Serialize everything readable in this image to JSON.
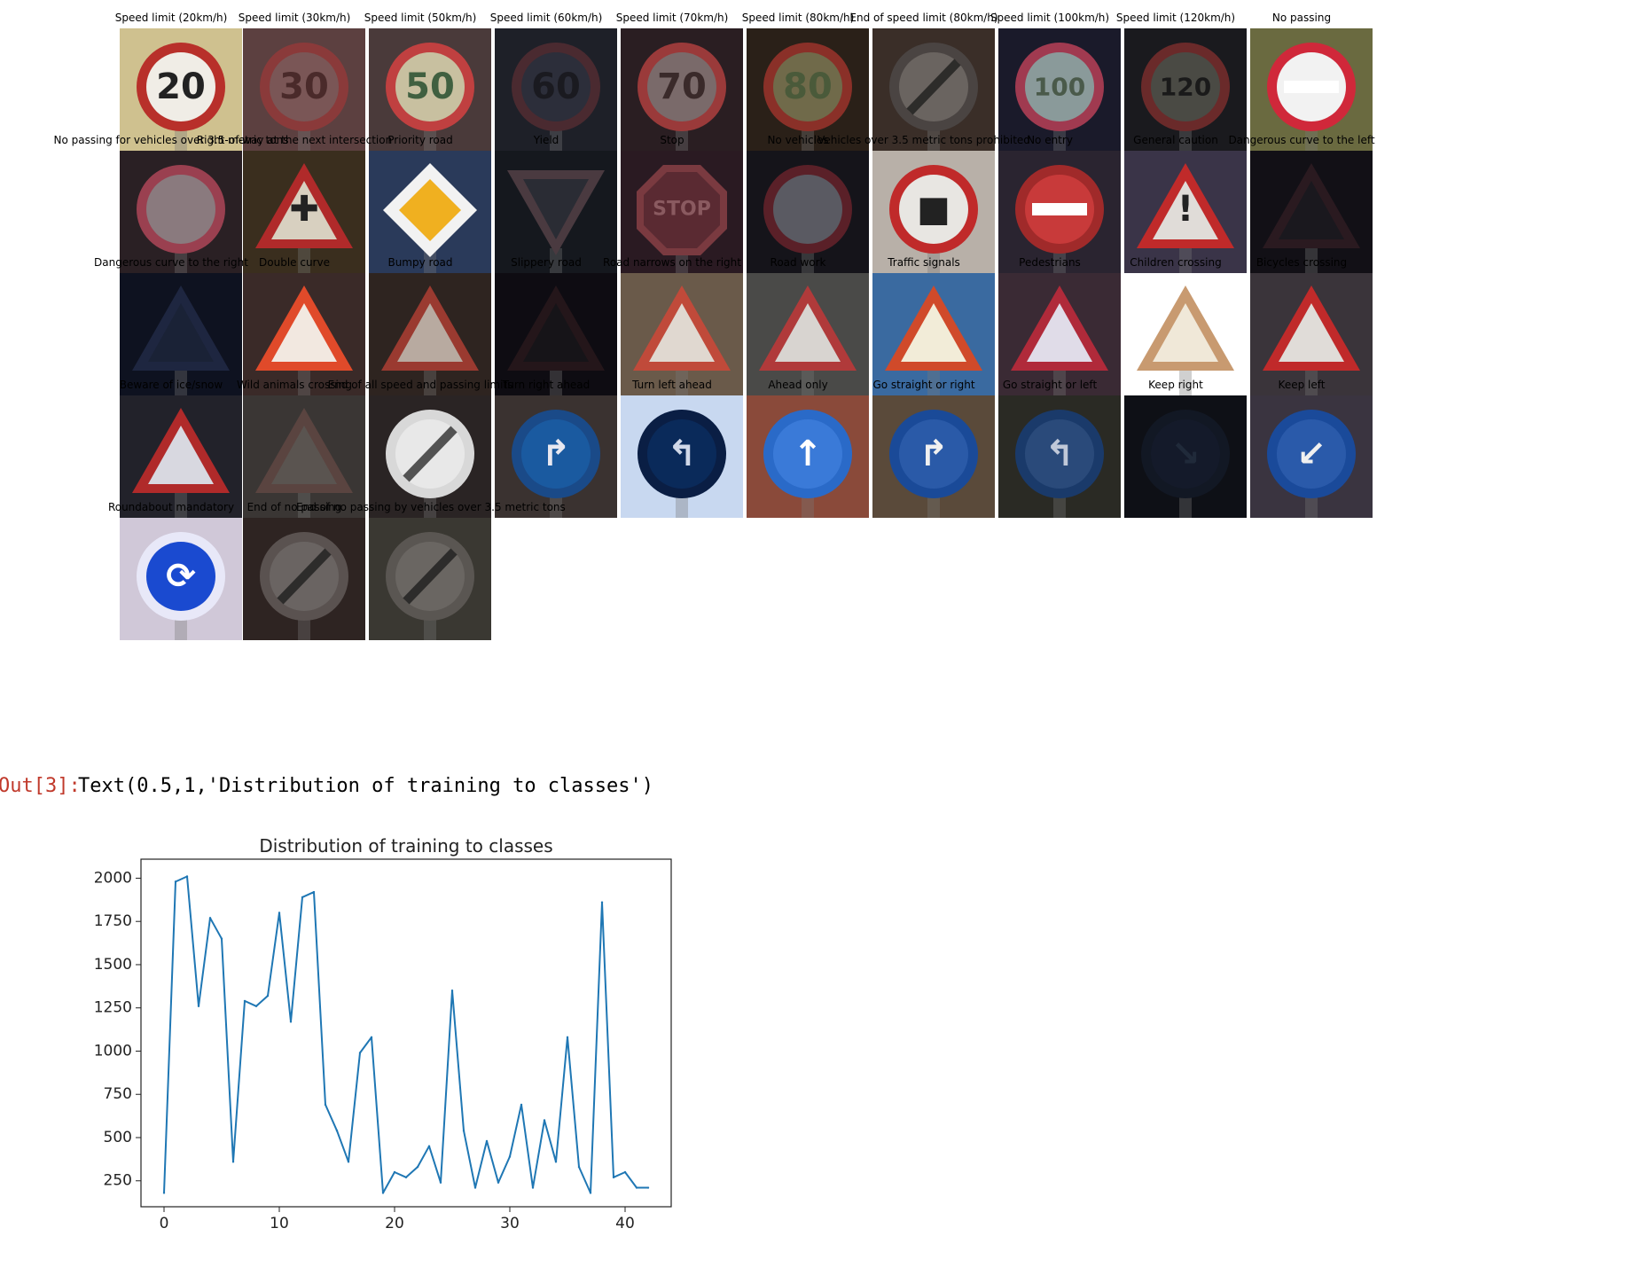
{
  "signs": [
    {
      "label": "Speed limit (20km/h)",
      "icon": "speed-limit-sign",
      "bg": "#cfc18f",
      "shape": "circle",
      "fill": "#f0ede6",
      "rim": "#b8302a",
      "glyph": "20",
      "glyphColor": "#222222"
    },
    {
      "label": "Speed limit (30km/h)",
      "icon": "speed-limit-sign",
      "bg": "#5c4040",
      "shape": "circle",
      "fill": "#7a5656",
      "rim": "#8a3a3a",
      "glyph": "30",
      "glyphColor": "#4a2a2a"
    },
    {
      "label": "Speed limit (50km/h)",
      "icon": "speed-limit-sign",
      "bg": "#4a3a3a",
      "shape": "circle",
      "fill": "#c8c0a0",
      "rim": "#c04040",
      "glyph": "50",
      "glyphColor": "#406040"
    },
    {
      "label": "Speed limit (60km/h)",
      "icon": "speed-limit-sign",
      "bg": "#1e2028",
      "shape": "circle",
      "fill": "#2c2e3a",
      "rim": "#4a2a30",
      "glyph": "60",
      "glyphColor": "#1a1a20"
    },
    {
      "label": "Speed limit (70km/h)",
      "icon": "speed-limit-sign",
      "bg": "#2a1e22",
      "shape": "circle",
      "fill": "#7a6a6a",
      "rim": "#9a3a3a",
      "glyph": "70",
      "glyphColor": "#3a2a2a"
    },
    {
      "label": "Speed limit (80km/h)",
      "icon": "speed-limit-sign",
      "bg": "#2a2018",
      "shape": "circle",
      "fill": "#706a4a",
      "rim": "#8a3028",
      "glyph": "80",
      "glyphColor": "#4a5a3a"
    },
    {
      "label": "End of speed limit (80km/h)",
      "icon": "end-speed-limit-sign",
      "bg": "#3a2e28",
      "shape": "circle",
      "fill": "#6a6460",
      "rim": "#4a4442",
      "glyph": "",
      "glyphColor": "#222222",
      "slash": true
    },
    {
      "label": "Speed limit (100km/h)",
      "icon": "speed-limit-sign",
      "bg": "#1a1a2a",
      "shape": "circle",
      "fill": "#8a9a9a",
      "rim": "#a03a50",
      "glyph": "100",
      "glyphColor": "#4a5a4a"
    },
    {
      "label": "Speed limit (120km/h)",
      "icon": "speed-limit-sign",
      "bg": "#1a1a1e",
      "shape": "circle",
      "fill": "#4a4a44",
      "rim": "#6a2a2a",
      "glyph": "120",
      "glyphColor": "#1a1a1a"
    },
    {
      "label": "No passing",
      "icon": "no-passing-sign",
      "bg": "#6a6a40",
      "shape": "circle",
      "fill": "#f2f2f2",
      "rim": "#d0283a",
      "glyph": "",
      "glyphColor": "#222222",
      "bar": true
    },
    {
      "label": "No passing for vehicles over 3.5 metric tons",
      "icon": "no-passing-trucks-sign",
      "bg": "#2a2024",
      "shape": "circle",
      "fill": "#8a7a7e",
      "rim": "#9a4050",
      "glyph": "",
      "glyphColor": "#3a2a2a"
    },
    {
      "label": "Right-of-way at the next intersection",
      "icon": "right-of-way-sign",
      "bg": "#3a2e1e",
      "shape": "triangle",
      "fill": "#d8d0c0",
      "rim": "#b02a2a",
      "glyph": "✚",
      "glyphColor": "#222222"
    },
    {
      "label": "Priority road",
      "icon": "priority-road-sign",
      "bg": "#2a3a5a",
      "shape": "diamond",
      "fill": "#f0b020",
      "rim": "#f2f2f2",
      "glyph": "",
      "glyphColor": "#222222"
    },
    {
      "label": "Yield",
      "icon": "yield-sign",
      "bg": "#15181e",
      "shape": "invtriangle",
      "fill": "#2a2c34",
      "rim": "#4a3a40",
      "glyph": "",
      "glyphColor": "#222222"
    },
    {
      "label": "Stop",
      "icon": "stop-sign",
      "bg": "#2a1a22",
      "shape": "octagon",
      "fill": "#5a2a32",
      "rim": "#7a3a40",
      "glyph": "STOP",
      "glyphColor": "#8a5a60"
    },
    {
      "label": "No vehicles",
      "icon": "no-vehicles-sign",
      "bg": "#15141a",
      "shape": "circle",
      "fill": "#5a5a62",
      "rim": "#5a2028",
      "glyph": "",
      "glyphColor": "#222222"
    },
    {
      "label": "Vehicles over 3.5 metric tons prohibited",
      "icon": "no-trucks-sign",
      "bg": "#b8b0a8",
      "shape": "circle",
      "fill": "#e8e6e2",
      "rim": "#c02a2a",
      "glyph": "■",
      "glyphColor": "#222222"
    },
    {
      "label": "No entry",
      "icon": "no-entry-sign",
      "bg": "#2a2430",
      "shape": "circle",
      "fill": "#c83a3a",
      "rim": "#a02a2a",
      "glyph": "",
      "glyphColor": "#222222",
      "bar": true
    },
    {
      "label": "General caution",
      "icon": "general-caution-sign",
      "bg": "#3a3448",
      "shape": "triangle",
      "fill": "#e0dcd8",
      "rim": "#c02a2a",
      "glyph": "!",
      "glyphColor": "#222222"
    },
    {
      "label": "Dangerous curve to the left",
      "icon": "curve-left-sign",
      "bg": "#121016",
      "shape": "triangle",
      "fill": "#1a181e",
      "rim": "#2a1a20",
      "glyph": "",
      "glyphColor": "#222222"
    },
    {
      "label": "Dangerous curve to the right",
      "icon": "curve-right-sign",
      "bg": "#0e1220",
      "shape": "triangle",
      "fill": "#1a2236",
      "rim": "#1e2640",
      "glyph": "",
      "glyphColor": "#222222"
    },
    {
      "label": "Double curve",
      "icon": "double-curve-sign",
      "bg": "#3a2a28",
      "shape": "triangle",
      "fill": "#f2e8e0",
      "rim": "#e04a2a",
      "glyph": "",
      "glyphColor": "#222222"
    },
    {
      "label": "Bumpy road",
      "icon": "bumpy-road-sign",
      "bg": "#2e2420",
      "shape": "triangle",
      "fill": "#b8aaa0",
      "rim": "#9a3a30",
      "glyph": "",
      "glyphColor": "#222222"
    },
    {
      "label": "Slippery road",
      "icon": "slippery-road-sign",
      "bg": "#0e0c12",
      "shape": "triangle",
      "fill": "#161418",
      "rim": "#24161a",
      "glyph": "",
      "glyphColor": "#222222"
    },
    {
      "label": "Road narrows on the right",
      "icon": "road-narrows-sign",
      "bg": "#6a5a4a",
      "shape": "triangle",
      "fill": "#e0d8d0",
      "rim": "#c04a3a",
      "glyph": "",
      "glyphColor": "#222222"
    },
    {
      "label": "Road work",
      "icon": "road-work-sign",
      "bg": "#4a4a48",
      "shape": "triangle",
      "fill": "#d8d4d0",
      "rim": "#b03a3a",
      "glyph": "",
      "glyphColor": "#222222"
    },
    {
      "label": "Traffic signals",
      "icon": "traffic-signals-sign",
      "bg": "#3a6aa0",
      "shape": "triangle",
      "fill": "#f2ecd8",
      "rim": "#d04a2a",
      "glyph": "",
      "glyphColor": "#222222"
    },
    {
      "label": "Pedestrians",
      "icon": "pedestrians-sign",
      "bg": "#3a2a34",
      "shape": "triangle",
      "fill": "#e0dce8",
      "rim": "#b02a3a",
      "glyph": "",
      "glyphColor": "#222222"
    },
    {
      "label": "Children crossing",
      "icon": "children-crossing-sign",
      "bg": "#ffffff",
      "shape": "triangle",
      "fill": "#f0e8d8",
      "rim": "#c89a70",
      "glyph": "",
      "glyphColor": "#222222"
    },
    {
      "label": "Bicycles crossing",
      "icon": "bicycles-crossing-sign",
      "bg": "#3a343a",
      "shape": "triangle",
      "fill": "#e0dcd8",
      "rim": "#c02a2a",
      "glyph": "",
      "glyphColor": "#222222"
    },
    {
      "label": "Beware of ice/snow",
      "icon": "ice-snow-sign",
      "bg": "#22222a",
      "shape": "triangle",
      "fill": "#d8d8e0",
      "rim": "#b02a2a",
      "glyph": "",
      "glyphColor": "#222222"
    },
    {
      "label": "Wild animals crossing",
      "icon": "wild-animals-sign",
      "bg": "#3a3634",
      "shape": "triangle",
      "fill": "#5a5450",
      "rim": "#5a4440",
      "glyph": "",
      "glyphColor": "#222222"
    },
    {
      "label": "End of all speed and passing limits",
      "icon": "end-all-limits-sign",
      "bg": "#2a2424",
      "shape": "circle",
      "fill": "#e8e8e8",
      "rim": "#d8d8d8",
      "glyph": "",
      "glyphColor": "#222222",
      "slash": true
    },
    {
      "label": "Turn right ahead",
      "icon": "turn-right-sign",
      "bg": "#3a3230",
      "shape": "circle",
      "fill": "#1a5aa0",
      "rim": "#1a4a88",
      "glyph": "↱",
      "glyphColor": "#e8e8f0"
    },
    {
      "label": "Turn left ahead",
      "icon": "turn-left-sign",
      "bg": "#c8d8f0",
      "shape": "circle",
      "fill": "#0a2a5a",
      "rim": "#0a1e44",
      "glyph": "↰",
      "glyphColor": "#d0d8e8"
    },
    {
      "label": "Ahead only",
      "icon": "ahead-only-sign",
      "bg": "#8a4a3a",
      "shape": "circle",
      "fill": "#3a7ad8",
      "rim": "#2a6ac8",
      "glyph": "↑",
      "glyphColor": "#ffffff"
    },
    {
      "label": "Go straight or right",
      "icon": "straight-or-right-sign",
      "bg": "#5a4a3a",
      "shape": "circle",
      "fill": "#2a5aa8",
      "rim": "#1a4a98",
      "glyph": "↱",
      "glyphColor": "#f0f0f0"
    },
    {
      "label": "Go straight or left",
      "icon": "straight-or-left-sign",
      "bg": "#2a2a24",
      "shape": "circle",
      "fill": "#2a4a7a",
      "rim": "#1a3a6a",
      "glyph": "↰",
      "glyphColor": "#c0c8d8"
    },
    {
      "label": "Keep right",
      "icon": "keep-right-sign",
      "bg": "#0e1016",
      "shape": "circle",
      "fill": "#141a2a",
      "rim": "#121824",
      "glyph": "↘",
      "glyphColor": "#202a3a"
    },
    {
      "label": "Keep left",
      "icon": "keep-left-sign",
      "bg": "#3a3440",
      "shape": "circle",
      "fill": "#2a5aaa",
      "rim": "#1a4a9a",
      "glyph": "↙",
      "glyphColor": "#f0f0f0"
    },
    {
      "label": "Roundabout mandatory",
      "icon": "roundabout-sign",
      "bg": "#d0c8d8",
      "shape": "circle",
      "fill": "#1a4ad0",
      "rim": "#e8e8f8",
      "glyph": "⟳",
      "glyphColor": "#ffffff"
    },
    {
      "label": "End of no passing",
      "icon": "end-no-passing-sign",
      "bg": "#2e2422",
      "shape": "circle",
      "fill": "#6a6462",
      "rim": "#5a5250",
      "glyph": "",
      "glyphColor": "#222222",
      "slash": true
    },
    {
      "label": "End of no passing by vehicles over 3.5 metric tons",
      "icon": "end-no-passing-trucks-sign",
      "bg": "#3a3832",
      "shape": "circle",
      "fill": "#6a6662",
      "rim": "#5a5652",
      "glyph": "",
      "glyphColor": "#222222",
      "slash": true
    }
  ],
  "output": {
    "prompt": "Out[3]:",
    "text": "Text(0.5,1,'Distribution of training to classes')"
  },
  "chart_data": {
    "type": "line",
    "title": "Distribution of training to classes",
    "xlabel": "",
    "ylabel": "",
    "xlim": [
      -2,
      44
    ],
    "ylim": [
      100,
      2110
    ],
    "xticks": [
      0,
      10,
      20,
      30,
      40
    ],
    "yticks": [
      250,
      500,
      750,
      1000,
      1250,
      1500,
      1750,
      2000
    ],
    "grid": false,
    "color": "#1f77b4",
    "x": [
      0,
      1,
      2,
      3,
      4,
      5,
      6,
      7,
      8,
      9,
      10,
      11,
      12,
      13,
      14,
      15,
      16,
      17,
      18,
      19,
      20,
      21,
      22,
      23,
      24,
      25,
      26,
      27,
      28,
      29,
      30,
      31,
      32,
      33,
      34,
      35,
      36,
      37,
      38,
      39,
      40,
      41,
      42
    ],
    "y": [
      180,
      1980,
      2010,
      1260,
      1770,
      1650,
      360,
      1290,
      1260,
      1320,
      1800,
      1170,
      1890,
      1920,
      690,
      540,
      360,
      990,
      1080,
      180,
      300,
      270,
      330,
      450,
      240,
      1350,
      540,
      210,
      480,
      240,
      390,
      690,
      210,
      600,
      360,
      1080,
      330,
      180,
      1860,
      270,
      300,
      210,
      210
    ]
  }
}
